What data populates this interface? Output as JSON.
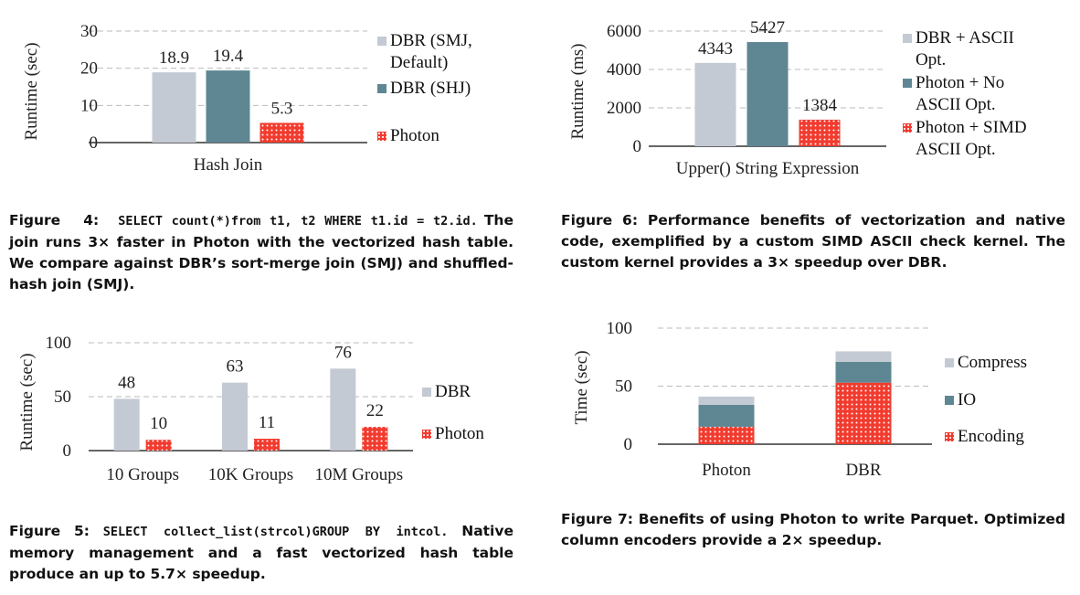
{
  "colors": {
    "grey": "#c4cad3",
    "teal": "#5f8793",
    "red": "#f23b2f",
    "grid": "#bbbbbb"
  },
  "captions": {
    "fig4_prefix": "Figure 4:",
    "fig4_code": "SELECT count(*)from t1, t2 WHERE t1.id = t2.id.",
    "fig4_text": "The join runs 3× faster in Photon with the vectorized hash table. We compare against DBR’s sort-merge join (SMJ) and shuffled-hash join (SMJ).",
    "fig5_prefix": "Figure 5:",
    "fig5_code": "SELECT collect_list(strcol)GROUP BY intcol.",
    "fig5_text": "Native memory management and a fast vectorized hash table produce an up to 5.7× speedup.",
    "fig6": "Figure 6: Performance benefits of vectorization and native code, exemplified by a custom SIMD ASCII check kernel. The custom kernel provides a 3× speedup over DBR.",
    "fig7": "Figure 7: Benefits of using Photon to write Parquet. Optimized column encoders provide a 2× speedup."
  },
  "chart_data": [
    {
      "id": "fig4",
      "type": "bar",
      "categories": [
        "Hash Join"
      ],
      "series": [
        {
          "name": "DBR (SMJ, Default)",
          "values": [
            18.9
          ],
          "labels": [
            "18.9"
          ],
          "color": "grey"
        },
        {
          "name": "DBR (SHJ)",
          "values": [
            19.4
          ],
          "labels": [
            "19.4"
          ],
          "color": "teal"
        },
        {
          "name": "Photon",
          "values": [
            5.3
          ],
          "labels": [
            "5.3"
          ],
          "color": "red"
        }
      ],
      "xlabel": "Hash Join",
      "ylabel": "Runtime (sec)",
      "ylim": [
        0,
        30
      ],
      "yticks": [
        "0",
        "10",
        "20",
        "30"
      ],
      "legend": [
        "DBR (SMJ,",
        "Default)",
        "DBR (SHJ)",
        "Photon"
      ],
      "grid": true,
      "legend_position": "right"
    },
    {
      "id": "fig5",
      "type": "bar",
      "categories": [
        "10 Groups",
        "10K Groups",
        "10M Groups"
      ],
      "series": [
        {
          "name": "DBR",
          "values": [
            48,
            63,
            76
          ],
          "labels": [
            "48",
            "63",
            "76"
          ],
          "color": "grey"
        },
        {
          "name": "Photon",
          "values": [
            10,
            11,
            22
          ],
          "labels": [
            "10",
            "11",
            "22"
          ],
          "color": "red"
        }
      ],
      "ylabel": "Runtime (sec)",
      "ylim": [
        0,
        100
      ],
      "yticks": [
        "0",
        "50",
        "100"
      ],
      "legend": [
        "DBR",
        "Photon"
      ],
      "grid": true,
      "legend_position": "right"
    },
    {
      "id": "fig6",
      "type": "bar",
      "categories": [
        "Upper() String Expression"
      ],
      "series": [
        {
          "name": "DBR + ASCII Opt.",
          "values": [
            4343
          ],
          "labels": [
            "4343"
          ],
          "color": "grey"
        },
        {
          "name": "Photon + No ASCII Opt.",
          "values": [
            5427
          ],
          "labels": [
            "5427"
          ],
          "color": "teal"
        },
        {
          "name": "Photon + SIMD ASCII Opt.",
          "values": [
            1384
          ],
          "labels": [
            "1384"
          ],
          "color": "red"
        }
      ],
      "xlabel": "Upper() String Expression",
      "ylabel": "Runtime (ms)",
      "ylim": [
        0,
        6000
      ],
      "yticks": [
        "0",
        "2000",
        "4000",
        "6000"
      ],
      "legend": [
        "DBR + ASCII",
        "Opt.",
        "Photon + No",
        "ASCII Opt.",
        "Photon + SIMD",
        "ASCII Opt."
      ],
      "grid": true,
      "legend_position": "right"
    },
    {
      "id": "fig7",
      "type": "bar",
      "stacked": true,
      "categories": [
        "Photon",
        "DBR"
      ],
      "series": [
        {
          "name": "Encoding",
          "values": [
            15,
            53
          ],
          "color": "red"
        },
        {
          "name": "IO",
          "values": [
            19,
            18
          ],
          "color": "teal"
        },
        {
          "name": "Compress",
          "values": [
            7,
            9
          ],
          "color": "grey"
        }
      ],
      "ylabel": "Time (sec)",
      "ylim": [
        0,
        100
      ],
      "yticks": [
        "0",
        "50",
        "100"
      ],
      "legend": [
        "Compress",
        "IO",
        "Encoding"
      ],
      "grid": true,
      "legend_position": "right"
    }
  ]
}
